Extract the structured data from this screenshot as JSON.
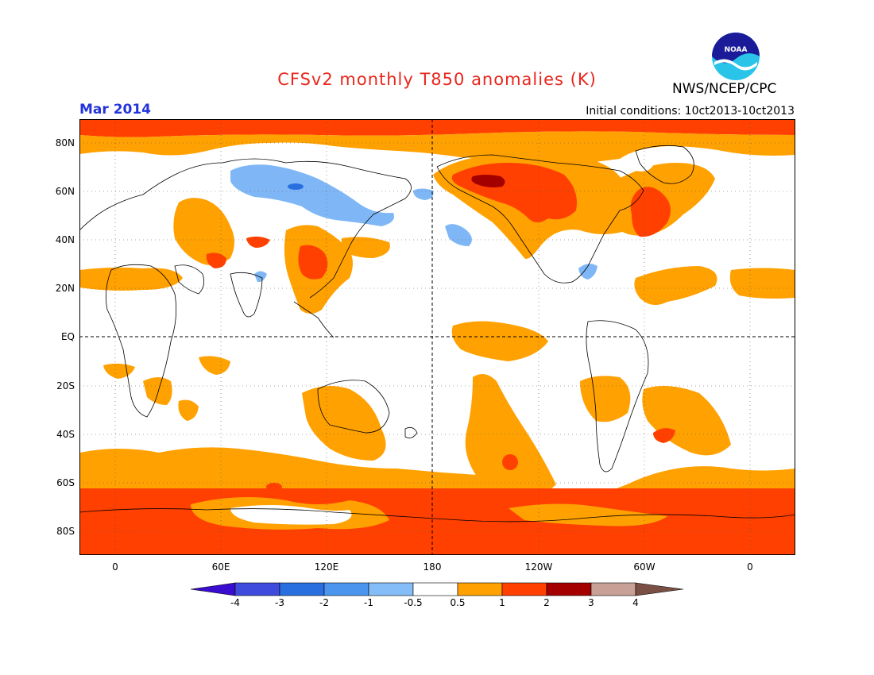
{
  "title": "CFSv2 monthly T850 anomalies (K)",
  "month": "Mar 2014",
  "initial_conditions": "Initial conditions: 10ct2013-10ct2013",
  "agency": "NWS/NCEP/CPC",
  "logo_text": "NOAA",
  "colors": {
    "title": "#e8261c",
    "month": "#2233dd",
    "warm1": "#ffa100",
    "warm2": "#ff4000",
    "warm3": "#a50000",
    "cool1": "#7fb7f6",
    "neutral": "#ffffff"
  },
  "map": {
    "lat_labels": [
      "80N",
      "60N",
      "40N",
      "20N",
      "EQ",
      "20S",
      "40S",
      "60S",
      "80S"
    ],
    "lon_labels": [
      "0",
      "60E",
      "120E",
      "180",
      "120W",
      "60W",
      "0"
    ]
  },
  "colorbar": {
    "labels": [
      "-4",
      "-3",
      "-2",
      "-1",
      "-0.5",
      "0.5",
      "1",
      "2",
      "3",
      "4"
    ],
    "colors": [
      "#3a0ccf",
      "#3f4bdc",
      "#2a6fe0",
      "#4c95ee",
      "#84bdf7",
      "#ffffff",
      "#ffa100",
      "#ff4000",
      "#a50000",
      "#c8a095",
      "#7a5045"
    ]
  }
}
